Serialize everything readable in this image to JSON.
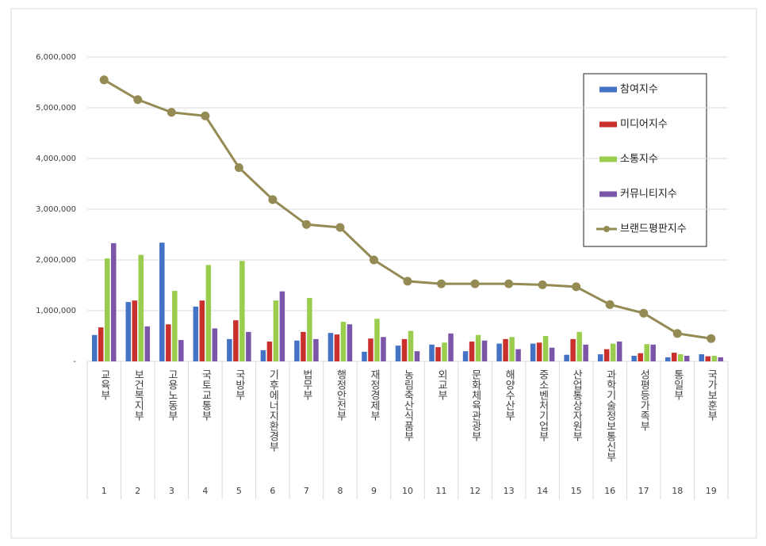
{
  "chart_data": {
    "type": "combo",
    "categories": [
      "교육부",
      "보건복지부",
      "고용노동부",
      "국토교통부",
      "국방부",
      "기후에너지환경부",
      "법무부",
      "행정안전부",
      "재정경제부",
      "농림축산식품부",
      "외교부",
      "문화체육관광부",
      "해양수산부",
      "중소벤처기업부",
      "산업통상자원부",
      "과학기술정보통신부",
      "성평등가족부",
      "통일부",
      "국가보훈부"
    ],
    "ranks": [
      "1",
      "2",
      "3",
      "4",
      "5",
      "6",
      "7",
      "8",
      "9",
      "10",
      "11",
      "12",
      "13",
      "14",
      "15",
      "16",
      "17",
      "18",
      "19"
    ],
    "ylim": [
      0,
      6000000
    ],
    "yticks": [
      {
        "value": 0,
        "label": "-"
      },
      {
        "value": 1000000,
        "label": "1,000,000"
      },
      {
        "value": 2000000,
        "label": "2,000,000"
      },
      {
        "value": 3000000,
        "label": "3,000,000"
      },
      {
        "value": 4000000,
        "label": "4,000,000"
      },
      {
        "value": 5000000,
        "label": "5,000,000"
      },
      {
        "value": 6000000,
        "label": "6,000,000"
      }
    ],
    "grid": true,
    "legend": "upper right",
    "series": [
      {
        "name": "참여지수",
        "type": "bar",
        "color": "#4472c4",
        "values": [
          520000,
          1170000,
          2340000,
          1080000,
          440000,
          220000,
          410000,
          560000,
          190000,
          310000,
          330000,
          200000,
          350000,
          350000,
          130000,
          140000,
          110000,
          80000,
          140000
        ]
      },
      {
        "name": "미디어지수",
        "type": "bar",
        "color": "#c9302c",
        "values": [
          670000,
          1200000,
          730000,
          1200000,
          810000,
          390000,
          580000,
          530000,
          450000,
          440000,
          280000,
          390000,
          440000,
          370000,
          440000,
          240000,
          160000,
          170000,
          100000
        ]
      },
      {
        "name": "소통지수",
        "type": "bar",
        "color": "#9acd4e",
        "values": [
          2030000,
          2100000,
          1390000,
          1900000,
          1980000,
          1200000,
          1250000,
          780000,
          840000,
          600000,
          370000,
          520000,
          480000,
          500000,
          580000,
          350000,
          340000,
          140000,
          110000
        ]
      },
      {
        "name": "커뮤니티지수",
        "type": "bar",
        "color": "#7b55a8",
        "values": [
          2330000,
          690000,
          420000,
          650000,
          580000,
          1380000,
          440000,
          730000,
          480000,
          200000,
          550000,
          410000,
          240000,
          270000,
          330000,
          390000,
          330000,
          110000,
          80000
        ]
      },
      {
        "name": "브랜드평판지수",
        "type": "line",
        "color": "#948a54",
        "values": [
          5550000,
          5160000,
          4910000,
          4840000,
          3820000,
          3190000,
          2700000,
          2640000,
          2000000,
          1580000,
          1530000,
          1530000,
          1530000,
          1510000,
          1470000,
          1120000,
          950000,
          550000,
          450000
        ]
      }
    ]
  }
}
